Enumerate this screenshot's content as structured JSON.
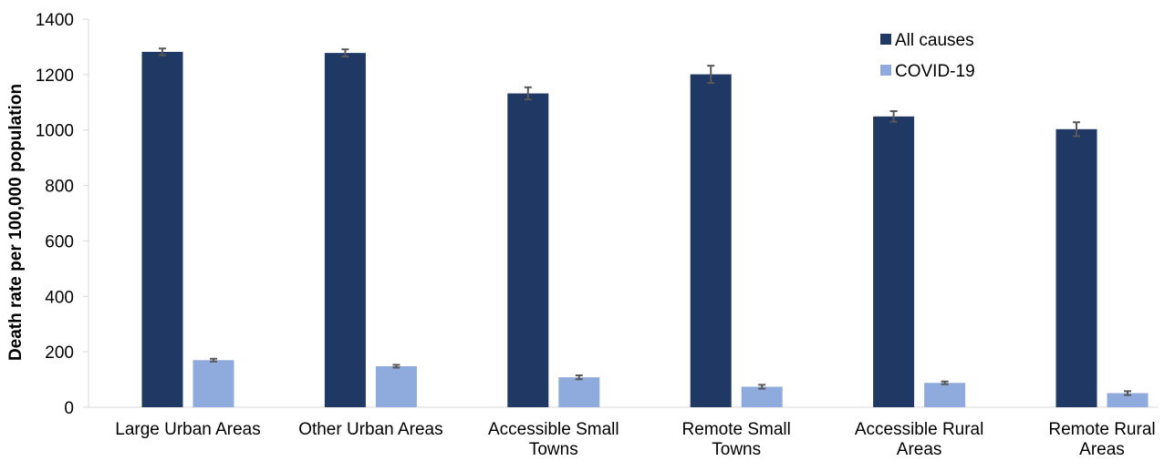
{
  "chart_data": {
    "type": "bar",
    "title": "",
    "xlabel": "",
    "ylabel": "Death rate per 100,000 population",
    "ylim": [
      0,
      1400
    ],
    "yticks": [
      0,
      200,
      400,
      600,
      800,
      1000,
      1200,
      1400
    ],
    "grid": false,
    "legend_position": "top-right",
    "categories": [
      [
        "Large Urban Areas"
      ],
      [
        "Other Urban Areas"
      ],
      [
        "Accessible Small",
        "Towns"
      ],
      [
        "Remote Small",
        "Towns"
      ],
      [
        "Accessible Rural",
        "Areas"
      ],
      [
        "Remote Rural",
        "Areas"
      ]
    ],
    "series": [
      {
        "name": "All causes",
        "color": "#203864",
        "values": [
          1282,
          1278,
          1132,
          1201,
          1049,
          1003
        ],
        "error_low": [
          1270,
          1265,
          1110,
          1170,
          1030,
          978
        ],
        "error_high": [
          1294,
          1291,
          1154,
          1232,
          1068,
          1028
        ]
      },
      {
        "name": "COVID-19",
        "color": "#8faadc",
        "values": [
          170,
          148,
          108,
          74,
          88,
          51
        ],
        "error_low": [
          165,
          143,
          101,
          67,
          83,
          44
        ],
        "error_high": [
          175,
          153,
          115,
          81,
          93,
          58
        ]
      }
    ],
    "error_bar_color": "#595959"
  }
}
